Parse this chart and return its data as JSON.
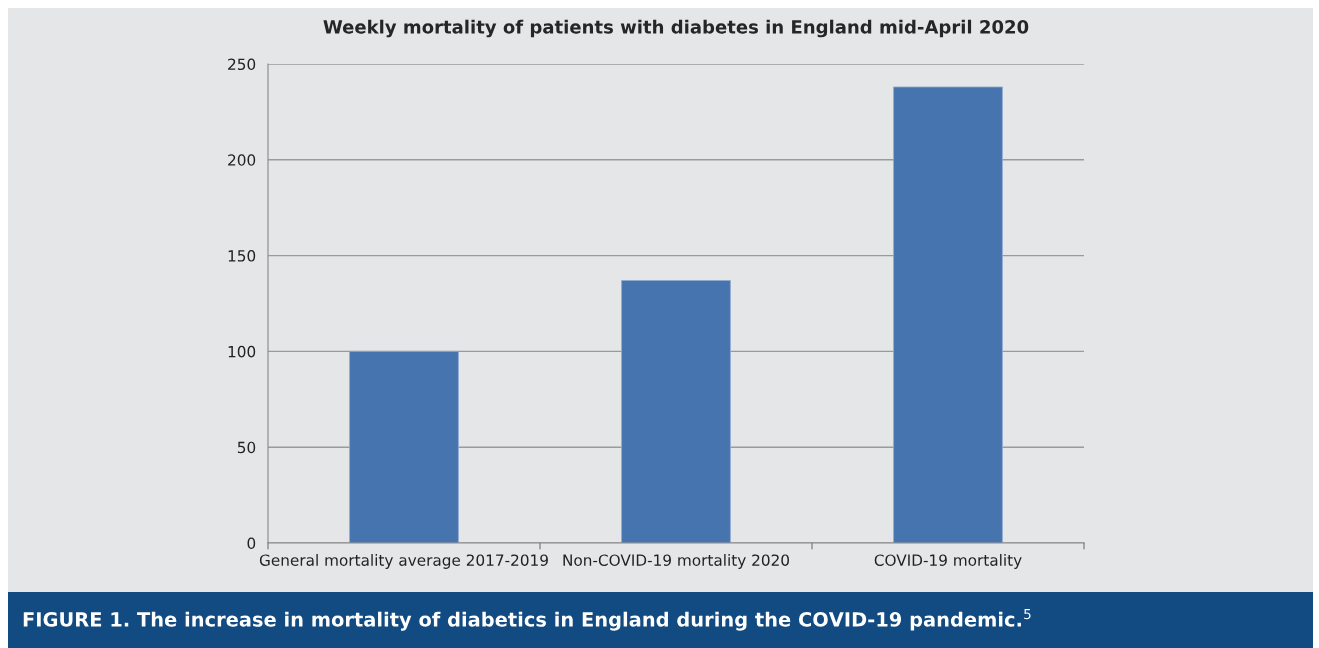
{
  "chart_data": {
    "type": "bar",
    "title": "Weekly mortality of patients with diabetes in England mid-April 2020",
    "categories": [
      "General mortality average 2017-2019",
      "Non-COVID-19 mortality 2020",
      "COVID-19 mortality"
    ],
    "values": [
      100,
      137,
      238
    ],
    "color": "#4674ae",
    "ylim": [
      0,
      250
    ],
    "yticks": [
      0,
      50,
      100,
      150,
      200,
      250
    ],
    "grid": "y",
    "annotations": [
      "FIGURE 1. The increase in mortality of diabetics in England during the COVID-19 pandemic.$^{5}$"
    ]
  }
}
